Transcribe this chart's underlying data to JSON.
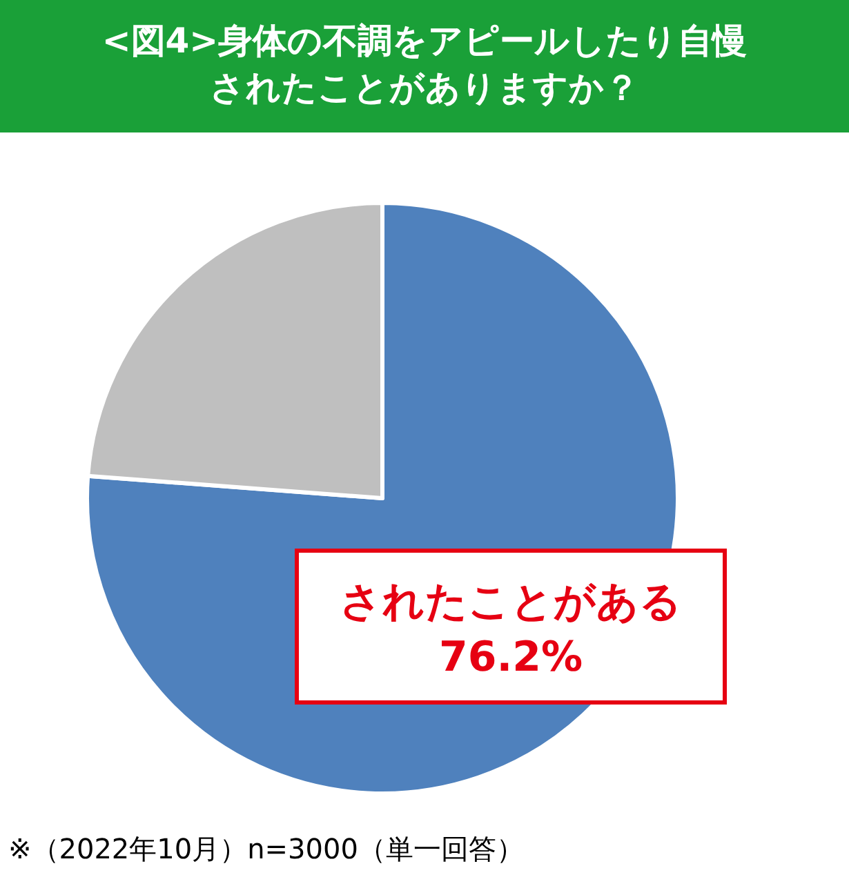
{
  "chart_data": {
    "type": "pie",
    "title": "<図4>身体の不調をアピールしたり自慢されたことがありますか？",
    "categories": [
      "されたことがある",
      null
    ],
    "values": [
      76.2,
      23.8
    ],
    "colors": [
      "#4f81bd",
      "#bfbfbf"
    ],
    "value_labels": [
      "76.2%",
      null
    ],
    "annotations": [
      "※（2022年10月）n=3000（単一回答）"
    ]
  }
}
